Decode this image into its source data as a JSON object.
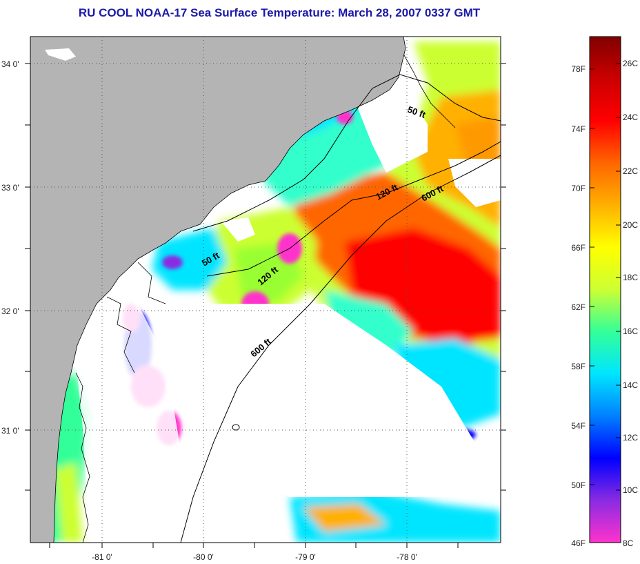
{
  "title": "RU COOL  NOAA-17  Sea Surface Temperature:  March 28, 2007 0337 GMT",
  "map": {
    "latitude_labels": [
      "34 0'",
      "33 0'",
      "32 0'",
      "31 0'"
    ],
    "longitude_labels": [
      "-81 0'",
      "-80 0'",
      "-79 0'",
      "-78 0'"
    ],
    "depth_contours": [
      {
        "label": "50 ft",
        "instance": "north"
      },
      {
        "label": "120 ft",
        "instance": "north"
      },
      {
        "label": "600 ft",
        "instance": "north"
      },
      {
        "label": "50 ft",
        "instance": "south"
      },
      {
        "label": "120 ft",
        "instance": "south"
      },
      {
        "label": "600 ft",
        "instance": "south"
      }
    ],
    "colors": {
      "land": "#b4b4b4",
      "cloud_mask": "#ffffff",
      "coastline": "#000000"
    }
  },
  "colorbar": {
    "fahrenheit_labels": [
      "78F",
      "74F",
      "70F",
      "66F",
      "62F",
      "58F",
      "54F",
      "50F",
      "46F"
    ],
    "celsius_labels": [
      "26C",
      "24C",
      "22C",
      "20C",
      "18C",
      "16C",
      "14C",
      "12C",
      "10C",
      "8C"
    ],
    "range_celsius": [
      8,
      27
    ],
    "colors_low_to_high": [
      "#ff33cc",
      "#8a2be2",
      "#0000ff",
      "#0080ff",
      "#00e5ff",
      "#33ff99",
      "#ccff33",
      "#ffff00",
      "#ffb000",
      "#ff6600",
      "#ff0000",
      "#cc0000",
      "#800000"
    ]
  }
}
